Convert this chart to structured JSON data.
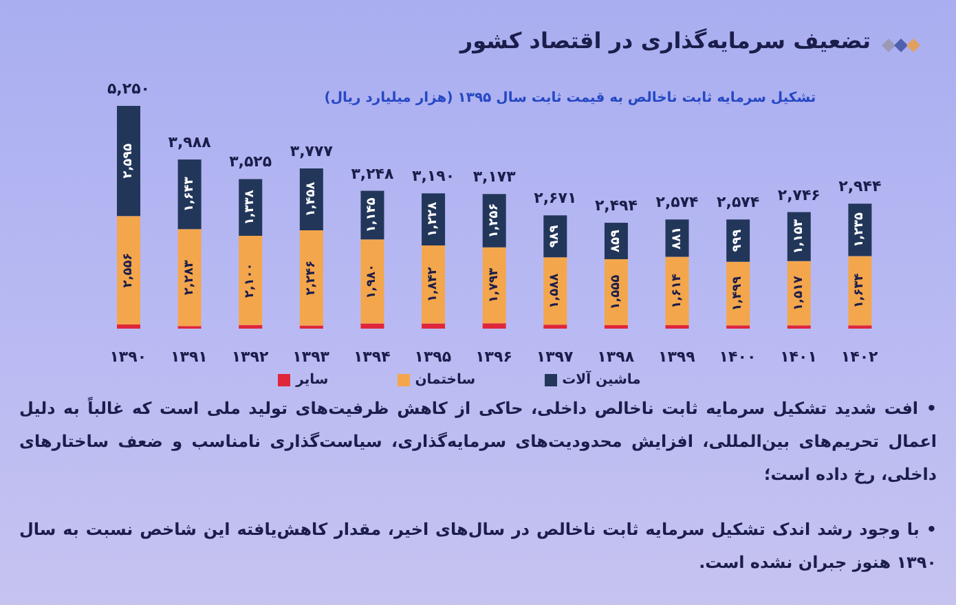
{
  "chart_data": {
    "type": "bar",
    "title": "تضعیف سرمایه‌گذاری در اقتصاد کشور",
    "subtitle": "تشکیل سرمایه ثابت ناخالص به قیمت ثابت سال ۱۳۹۵ (هزار میلیارد ریال)",
    "categories": [
      "۱۳۹۰",
      "۱۳۹۱",
      "۱۳۹۲",
      "۱۳۹۳",
      "۱۳۹۴",
      "۱۳۹۵",
      "۱۳۹۶",
      "۱۳۹۷",
      "۱۳۹۸",
      "۱۳۹۹",
      "۱۴۰۰",
      "۱۴۰۱",
      "۱۴۰۲"
    ],
    "series": [
      {
        "name": "سایر",
        "color": "#e0263a",
        "values": [
          99,
          62,
          87,
          73,
          123,
          120,
          124,
          94,
          80,
          79,
          76,
          76,
          75
        ]
      },
      {
        "name": "ساختمان",
        "color": "#f4a64c",
        "values": [
          2556,
          2283,
          2100,
          2246,
          1980,
          1842,
          1793,
          1588,
          1555,
          1614,
          1499,
          1517,
          1634
        ],
        "value_labels": [
          "۲,۵۵۶",
          "۲,۲۸۳",
          "۲,۱۰۰",
          "۲,۲۴۶",
          "۱,۹۸۰",
          "۱,۸۴۲",
          "۱,۷۹۳",
          "۱,۵۸۸",
          "۱,۵۵۵",
          "۱,۶۱۴",
          "۱,۴۹۹",
          "۱,۵۱۷",
          "۱,۶۳۴"
        ]
      },
      {
        "name": "ماشین آلات",
        "color": "#22365a",
        "values": [
          2595,
          1643,
          1338,
          1458,
          1145,
          1228,
          1256,
          989,
          859,
          881,
          999,
          1153,
          1235
        ],
        "value_labels": [
          "۲,۵۹۵",
          "۱,۶۴۳",
          "۱,۳۳۸",
          "۱,۴۵۸",
          "۱,۱۴۵",
          "۱,۲۲۸",
          "۱,۲۵۶",
          "۹۸۹",
          "۸۵۹",
          "۸۸۱",
          "۹۹۹",
          "۱,۱۵۳",
          "۱,۲۳۵"
        ]
      }
    ],
    "totals": [
      "۵,۲۵۰",
      "۳,۹۸۸",
      "۳,۵۲۵",
      "۳,۷۷۷",
      "۳,۲۴۸",
      "۳,۱۹۰",
      "۳,۱۷۳",
      "۲,۶۷۱",
      "۲,۴۹۴",
      "۲,۵۷۴",
      "۲,۵۷۴",
      "۲,۷۴۶",
      "۲,۹۴۴"
    ],
    "stacked": true,
    "legend": "bottom",
    "tick_labels": "x",
    "annotations": [
      "• افت شدید تشکیل سرمایه ثابت ناخالص داخلی، حاکی از کاهش ظرفیت‌های تولید ملی است که غالباً به دلیل اعمال تحریم‌های بین‌المللی، افزایش محدودیت‌های سرمایه‌گذاری، سیاست‌گذاری نامناسب و ضعف ساختارهای داخلی، رخ داده است؛",
      "• با وجود رشد اندک تشکیل سرمایه ثابت ناخالص در سال‌های اخیر، مقدار کاهش‌یافته این شاخص نسبت به سال ۱۳۹۰ هنوز جبران نشده است."
    ]
  }
}
